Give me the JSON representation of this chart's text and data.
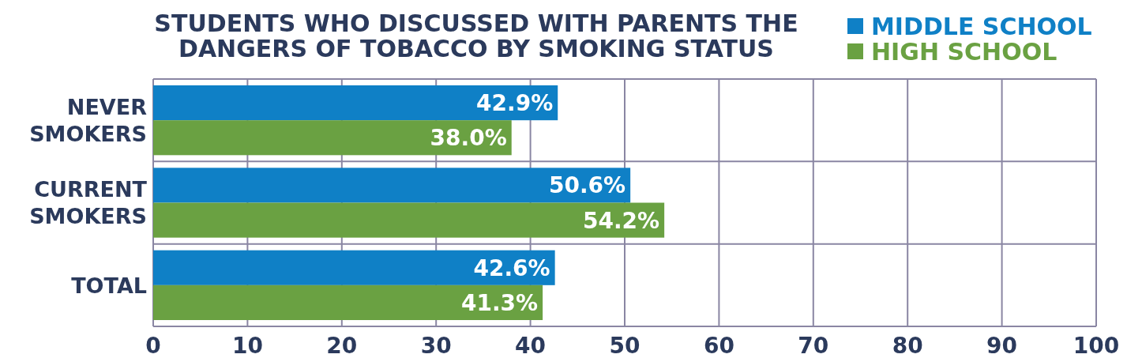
{
  "chart_data": {
    "type": "bar",
    "orientation": "horizontal",
    "title": "STUDENTS WHO DISCUSSED WITH PARENTS THE DANGERS OF TOBACCO BY SMOKING STATUS",
    "categories": [
      "NEVER SMOKERS",
      "CURRENT SMOKERS",
      "TOTAL"
    ],
    "series": [
      {
        "name": "MIDDLE SCHOOL",
        "color": "#0f80c6",
        "values": [
          42.9,
          50.6,
          42.6
        ],
        "value_labels": [
          "42.9%",
          "50.6%",
          "42.6%"
        ]
      },
      {
        "name": "HIGH SCHOOL",
        "color": "#6aa142",
        "values": [
          38.0,
          54.2,
          41.3
        ],
        "value_labels": [
          "38.0%",
          "54.2%",
          "41.3%"
        ]
      }
    ],
    "xlim": [
      0,
      100
    ],
    "xticks": [
      0,
      10,
      20,
      30,
      40,
      50,
      60,
      70,
      80,
      90,
      100
    ],
    "grid": "x",
    "legend": "top right"
  }
}
